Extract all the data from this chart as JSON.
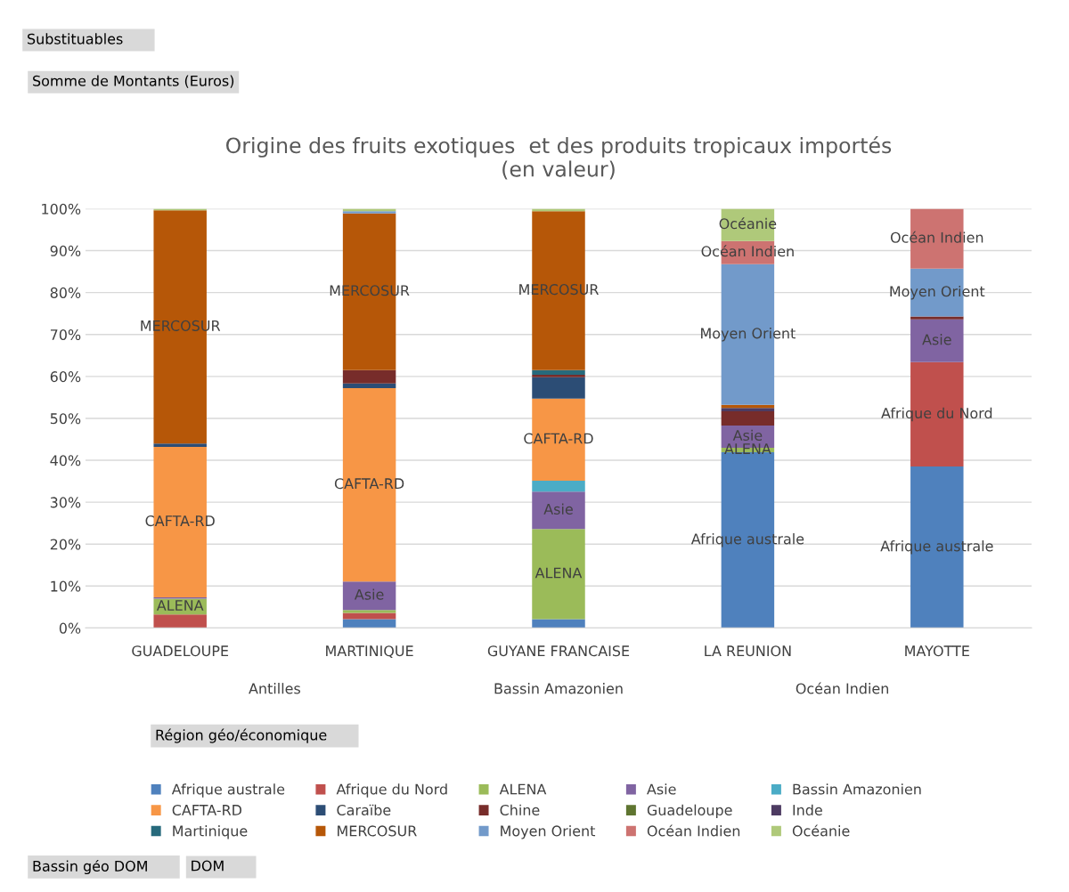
{
  "chart_data": {
    "type": "bar",
    "stacked": true,
    "title": "Origine des fruits exotiques  et des produits tropicaux importés\n(en valeur)",
    "categories": [
      "GUADELOUPE",
      "MARTINIQUE",
      "GUYANE FRANCAISE",
      "LA REUNION",
      "MAYOTTE"
    ],
    "series": [
      {
        "name": "Afrique australe",
        "color": "#4f81bd",
        "values": [
          null,
          2.1,
          2.1,
          41.9,
          38.5
        ],
        "value_labels": [
          null,
          null,
          null,
          "Afrique australe",
          "Afrique australe"
        ]
      },
      {
        "name": "Afrique du Nord",
        "color": "#c0504d",
        "values": [
          3.2,
          1.5,
          null,
          null,
          24.9
        ],
        "value_labels": [
          null,
          null,
          null,
          null,
          "Afrique du Nord"
        ]
      },
      {
        "name": "ALENA",
        "color": "#9bbb59",
        "values": [
          3.8,
          0.7,
          21.5,
          1.1,
          null
        ],
        "value_labels": [
          "ALENA",
          null,
          "ALENA",
          "ALENA",
          null
        ]
      },
      {
        "name": "Asie",
        "color": "#8064a2",
        "values": [
          0.3,
          6.8,
          8.9,
          5.3,
          10.2
        ],
        "value_labels": [
          null,
          "Asie",
          "Asie",
          "Asie",
          "Asie"
        ]
      },
      {
        "name": "Bassin Amazonien",
        "color": "#4bacc6",
        "values": [
          null,
          null,
          2.6,
          null,
          null
        ],
        "value_labels": [
          null,
          null,
          null,
          null,
          null
        ]
      },
      {
        "name": "CAFTA-RD",
        "color": "#f79646",
        "values": [
          35.9,
          46.1,
          19.6,
          null,
          null
        ],
        "value_labels": [
          "CAFTA-RD",
          "CAFTA-RD",
          "CAFTA-RD",
          null,
          null
        ]
      },
      {
        "name": "Caraïbe",
        "color": "#2c4d75",
        "values": [
          0.8,
          1.1,
          5.1,
          null,
          null
        ],
        "value_labels": [
          null,
          null,
          null,
          null,
          null
        ]
      },
      {
        "name": "Chine",
        "color": "#772c2a",
        "values": [
          null,
          3.2,
          0.6,
          3.4,
          0.7
        ],
        "value_labels": [
          null,
          null,
          null,
          null,
          null
        ]
      },
      {
        "name": "Guadeloupe",
        "color": "#5f7530",
        "values": [
          null,
          null,
          null,
          null,
          null
        ],
        "value_labels": [
          null,
          null,
          null,
          null,
          null
        ]
      },
      {
        "name": "Inde",
        "color": "#4d3b62",
        "values": [
          null,
          null,
          null,
          0.8,
          null
        ],
        "value_labels": [
          null,
          null,
          null,
          null,
          null
        ]
      },
      {
        "name": "Martinique",
        "color": "#276a7c",
        "values": [
          null,
          null,
          1.1,
          null,
          null
        ],
        "value_labels": [
          null,
          null,
          null,
          null,
          null
        ]
      },
      {
        "name": "MERCOSUR",
        "color": "#b65708",
        "values": [
          55.6,
          37.4,
          37.9,
          0.7,
          null
        ],
        "value_labels": [
          "MERCOSUR",
          "MERCOSUR",
          "MERCOSUR",
          null,
          null
        ]
      },
      {
        "name": "Moyen Orient",
        "color": "#729aca",
        "values": [
          null,
          0.5,
          null,
          33.6,
          11.4
        ],
        "value_labels": [
          null,
          null,
          null,
          "Moyen Orient",
          "Moyen Orient"
        ]
      },
      {
        "name": "Océan Indien",
        "color": "#cd7371",
        "values": [
          null,
          null,
          null,
          5.5,
          14.3
        ],
        "value_labels": [
          null,
          null,
          null,
          "Océan Indien",
          "Océan Indien"
        ]
      },
      {
        "name": "Océanie",
        "color": "#afc97a",
        "values": [
          0.4,
          0.6,
          0.6,
          7.7,
          null
        ],
        "value_labels": [
          null,
          null,
          null,
          "Océanie",
          null
        ]
      }
    ],
    "ylim": [
      0,
      100
    ],
    "yticks": [
      {
        "value": 0,
        "label": "0%"
      },
      {
        "value": 10,
        "label": "10%"
      },
      {
        "value": 20,
        "label": "20%"
      },
      {
        "value": 30,
        "label": "30%"
      },
      {
        "value": 40,
        "label": "40%"
      },
      {
        "value": 50,
        "label": "50%"
      },
      {
        "value": 60,
        "label": "60%"
      },
      {
        "value": 70,
        "label": "70%"
      },
      {
        "value": 80,
        "label": "80%"
      },
      {
        "value": 90,
        "label": "90%"
      },
      {
        "value": 100,
        "label": "100%"
      }
    ],
    "grid": "y",
    "legend": "bottom",
    "legend_title": "Région géo/économique",
    "annotations": [
      "Antilles",
      "Bassin Amazonien",
      "Océan Indien",
      "Substituables",
      "Somme de Montants (Euros)",
      "Bassin géo DOM",
      "DOM"
    ]
  }
}
